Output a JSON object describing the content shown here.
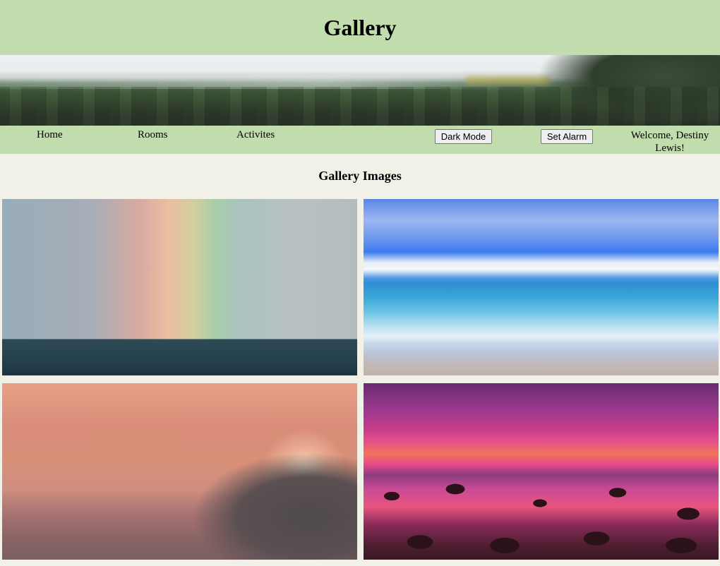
{
  "header": {
    "title": "Gallery"
  },
  "nav": {
    "links": [
      "Home",
      "Rooms",
      "Activites"
    ],
    "dark_mode_label": "Dark Mode",
    "set_alarm_label": "Set Alarm",
    "welcome_text": "Welcome, Destiny Lewis!"
  },
  "gallery": {
    "title": "Gallery Images"
  }
}
